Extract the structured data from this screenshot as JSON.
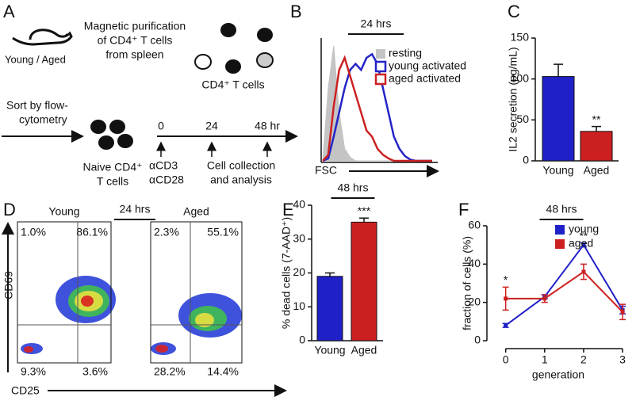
{
  "figure": {
    "panel_labels": [
      "A",
      "B",
      "C",
      "D",
      "E",
      "F"
    ],
    "diagram": {
      "mouse_label": "Young / Aged",
      "purification": [
        "Magnetic purification",
        "of CD4⁺ T cells",
        "from spleen"
      ],
      "cells_label": "CD4⁺ T cells",
      "sort": [
        "Sort by flow-",
        "cytometry"
      ],
      "naive": [
        "Naive CD4⁺",
        "T cells"
      ],
      "timeline": [
        "0",
        "24",
        "48 hr"
      ],
      "stimulus": [
        "αCD3",
        "αCD28"
      ],
      "collection": [
        "Cell collection",
        "and analysis"
      ]
    }
  },
  "chart_data": [
    {
      "type": "histogram-curves",
      "title": "24 hrs",
      "x_label": "FSC",
      "x": [
        0,
        5,
        10,
        15,
        20,
        25,
        30,
        35,
        40,
        45,
        50,
        55,
        60,
        65,
        70,
        75,
        80,
        85,
        90,
        95,
        100
      ],
      "xlim": [
        0,
        100
      ],
      "ylim": [
        0,
        100
      ],
      "series": [
        {
          "name": "resting",
          "color": "#c4c4c4",
          "filled": true,
          "values": [
            0,
            60,
            95,
            40,
            10,
            3,
            0,
            0,
            0,
            0,
            0,
            0,
            0,
            0,
            0,
            0,
            0,
            0,
            0,
            0,
            0
          ]
        },
        {
          "name": "young activated",
          "color": "#2424c8",
          "filled": false,
          "values": [
            0,
            2,
            20,
            40,
            60,
            75,
            80,
            75,
            85,
            88,
            80,
            60,
            40,
            20,
            10,
            4,
            1,
            0,
            0,
            0,
            0
          ]
        },
        {
          "name": "aged activated",
          "color": "#cc2222",
          "filled": false,
          "values": [
            0,
            5,
            45,
            75,
            85,
            70,
            55,
            40,
            25,
            20,
            10,
            5,
            2,
            0,
            0,
            0,
            0,
            0,
            0,
            0,
            0
          ]
        }
      ]
    },
    {
      "type": "bar",
      "y_label": "IL2 secretion (pg/mL)",
      "categories": [
        "Young",
        "Aged"
      ],
      "values": [
        103,
        36
      ],
      "errors": [
        15,
        6
      ],
      "colors": [
        "#2020c8",
        "#cc2020"
      ],
      "ylim": [
        0,
        150
      ],
      "yticks": [
        0,
        50,
        100,
        150
      ],
      "annotations": [
        {
          "x": "Aged",
          "text": "**"
        }
      ]
    },
    {
      "type": "density",
      "title": "24 hrs",
      "x_label": "CD25",
      "y_label": "CD69",
      "panels": [
        {
          "title": "Young",
          "values": [
            1.0,
            86.1,
            9.3,
            3.6
          ],
          "value_labels": [
            "1.0%",
            "86.1%",
            "9.3%",
            "3.6%"
          ]
        },
        {
          "title": "Aged",
          "values": [
            2.3,
            55.1,
            28.2,
            14.4
          ],
          "value_labels": [
            "2.3%",
            "55.1%",
            "28.2%",
            "14.4%"
          ]
        }
      ]
    },
    {
      "type": "bar",
      "title": "48 hrs",
      "y_label": "% dead cells (7-AAD⁺)",
      "categories": [
        "Young",
        "Aged"
      ],
      "values": [
        19,
        35
      ],
      "errors": [
        1,
        1.2
      ],
      "colors": [
        "#2020c8",
        "#cc2020"
      ],
      "ylim": [
        0,
        40
      ],
      "yticks": [
        0,
        10,
        20,
        30,
        40
      ],
      "annotations": [
        {
          "x": "Aged",
          "text": "***"
        }
      ]
    },
    {
      "type": "line",
      "title": "48 hrs",
      "x_label": "generation",
      "y_label": "fraction of cells (%)",
      "x": [
        0,
        1,
        2,
        3
      ],
      "xlim": [
        -0.4,
        3.1
      ],
      "xticks": [
        0,
        1,
        2,
        3
      ],
      "ylim": [
        0,
        60
      ],
      "yticks": [
        0,
        20,
        40,
        60
      ],
      "series": [
        {
          "name": "young",
          "color": "#2020c8",
          "values": [
            8,
            23,
            50,
            16
          ],
          "errors": [
            1,
            1,
            1,
            2
          ]
        },
        {
          "name": "aged",
          "color": "#cc2020",
          "values": [
            22,
            22,
            36,
            15
          ],
          "errors": [
            6,
            2,
            4,
            4
          ]
        }
      ],
      "annotations": [
        {
          "x": 0,
          "text": "*"
        },
        {
          "x": 2,
          "text": "**"
        }
      ]
    }
  ]
}
